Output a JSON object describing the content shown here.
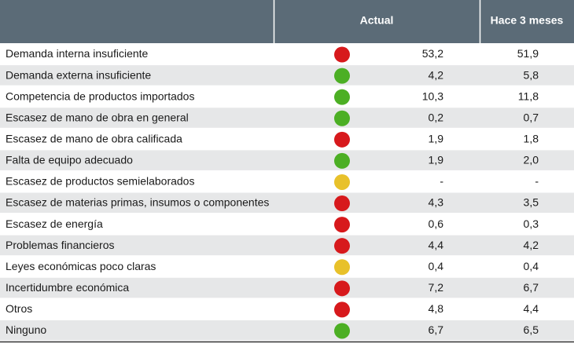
{
  "table": {
    "header": [
      "Actual",
      "Hace 3 meses"
    ],
    "rows": [
      {
        "label": "Demanda interna insuficiente",
        "color": "#d7191c",
        "actual": "53,2",
        "previous": "51,9"
      },
      {
        "label": "Demanda externa insuficiente",
        "color": "#4caf24",
        "actual": "4,2",
        "previous": "5,8"
      },
      {
        "label": "Competencia de productos importados",
        "color": "#4caf24",
        "actual": "10,3",
        "previous": "11,8"
      },
      {
        "label": "Escasez de mano de obra en general",
        "color": "#4caf24",
        "actual": "0,2",
        "previous": "0,7"
      },
      {
        "label": "Escasez de mano de obra calificada",
        "color": "#d7191c",
        "actual": "1,9",
        "previous": "1,8"
      },
      {
        "label": "Falta de equipo adecuado",
        "color": "#4caf24",
        "actual": "1,9",
        "previous": "2,0"
      },
      {
        "label": "Escasez de productos semielaborados",
        "color": "#e8c12a",
        "actual": "-",
        "previous": "-"
      },
      {
        "label": "Escasez de materias primas, insumos o componentes",
        "color": "#d7191c",
        "actual": "4,3",
        "previous": "3,5"
      },
      {
        "label": "Escasez de energía",
        "color": "#d7191c",
        "actual": "0,6",
        "previous": "0,3"
      },
      {
        "label": "Problemas financieros",
        "color": "#d7191c",
        "actual": "4,4",
        "previous": "4,2"
      },
      {
        "label": "Leyes económicas poco claras",
        "color": "#e8c12a",
        "actual": "0,4",
        "previous": "0,4"
      },
      {
        "label": "Incertidumbre económica",
        "color": "#d7191c",
        "actual": "7,2",
        "previous": "6,7"
      },
      {
        "label": "Otros",
        "color": "#d7191c",
        "actual": "4,8",
        "previous": "4,4"
      },
      {
        "label": "Ninguno",
        "color": "#4caf24",
        "actual": "6,7",
        "previous": "6,5"
      }
    ]
  }
}
